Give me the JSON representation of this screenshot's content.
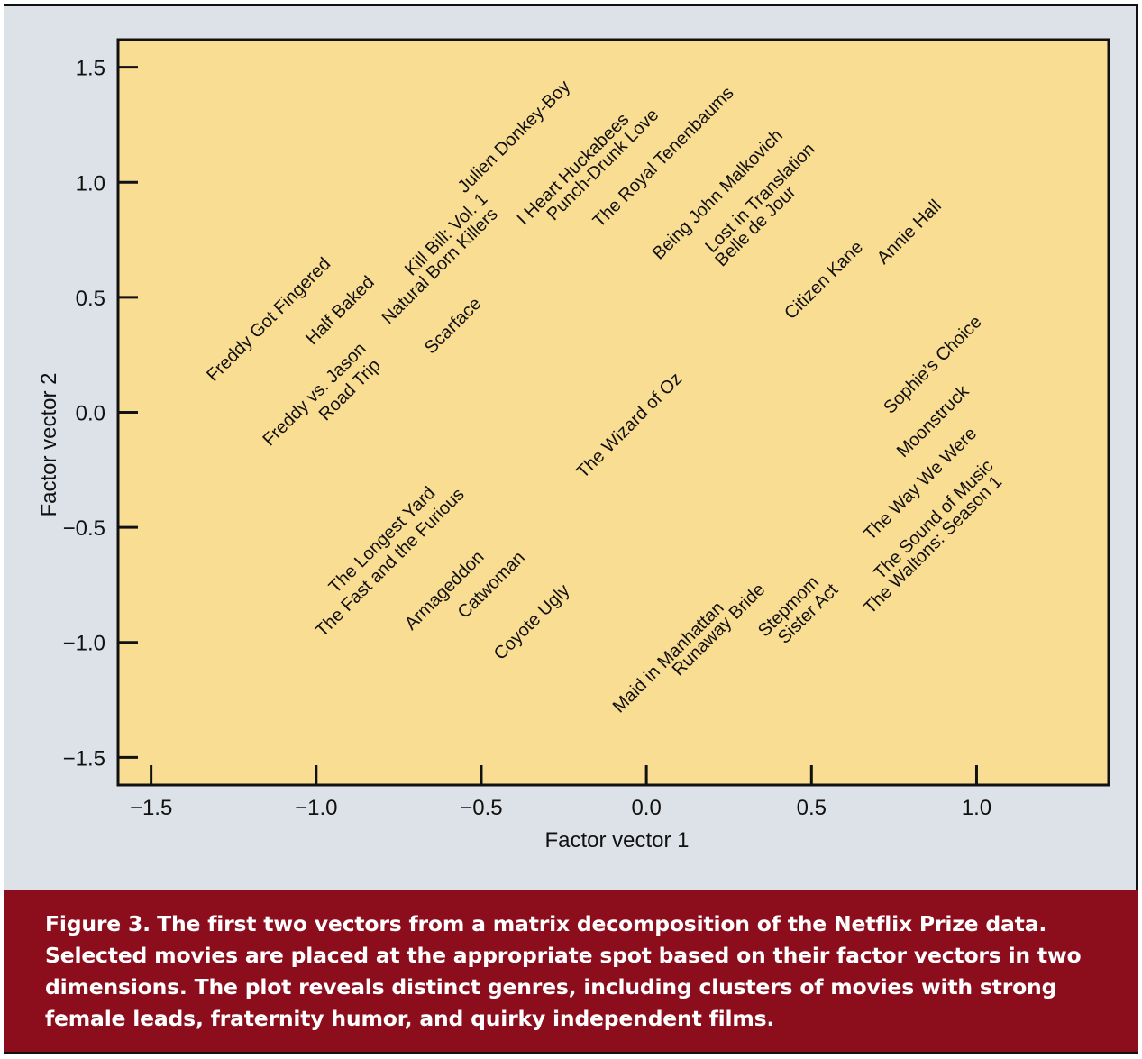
{
  "chart_data": {
    "type": "scatter",
    "xlabel": "Factor vector 1",
    "ylabel": "Factor vector 2",
    "xlim": [
      -1.6,
      1.4
    ],
    "ylim": [
      -1.62,
      1.62
    ],
    "xticks": [
      -1.5,
      -1.0,
      -0.5,
      0.0,
      0.5,
      1.0
    ],
    "xtick_labels": [
      "−1.5",
      "−1.0",
      "−0.5",
      "0.0",
      "0.5",
      "1.0"
    ],
    "yticks": [
      1.5,
      1.0,
      0.5,
      0.0,
      -0.5,
      -1.0,
      -1.5
    ],
    "ytick_labels": [
      "1.5",
      "1.0",
      "0.5",
      "0.0",
      "−0.5",
      "−1.0",
      "−1.5"
    ],
    "grid": false,
    "plot_background": "#f9dd92",
    "points": [
      {
        "label": "Freddy Got Fingered",
        "x": -1.31,
        "y": 0.13
      },
      {
        "label": "Half Baked",
        "x": -1.01,
        "y": 0.29
      },
      {
        "label": "Freddy vs. Jason",
        "x": -1.14,
        "y": -0.15
      },
      {
        "label": "Road Trip",
        "x": -0.97,
        "y": -0.04
      },
      {
        "label": "Natural Born Killers",
        "x": -0.78,
        "y": 0.38
      },
      {
        "label": "Kill Bill: Vol. 1",
        "x": -0.71,
        "y": 0.59
      },
      {
        "label": "Scarface",
        "x": -0.65,
        "y": 0.25
      },
      {
        "label": "Julien Donkey-Boy",
        "x": -0.55,
        "y": 0.95
      },
      {
        "label": "I Heart Huckabees",
        "x": -0.37,
        "y": 0.81
      },
      {
        "label": "Punch-Drunk Love",
        "x": -0.28,
        "y": 0.83
      },
      {
        "label": "The Royal Tenenbaums",
        "x": -0.14,
        "y": 0.8
      },
      {
        "label": "Being John Malkovich",
        "x": 0.04,
        "y": 0.66
      },
      {
        "label": "Lost in Translation",
        "x": 0.2,
        "y": 0.69
      },
      {
        "label": "Belle de Jour",
        "x": 0.23,
        "y": 0.63
      },
      {
        "label": "Citizen Kane",
        "x": 0.44,
        "y": 0.4
      },
      {
        "label": "Annie Hall",
        "x": 0.72,
        "y": 0.64
      },
      {
        "label": "Sophie’s Choice",
        "x": 0.74,
        "y": -0.01
      },
      {
        "label": "Moonstruck",
        "x": 0.78,
        "y": -0.2
      },
      {
        "label": "The Way We Were",
        "x": 0.68,
        "y": -0.56
      },
      {
        "label": "The Sound of Music",
        "x": 0.71,
        "y": -0.73
      },
      {
        "label": "The Waltons: Season 1",
        "x": 0.68,
        "y": -0.88
      },
      {
        "label": "The Wizard of Oz",
        "x": -0.19,
        "y": -0.29
      },
      {
        "label": "The Longest Yard",
        "x": -0.94,
        "y": -0.79
      },
      {
        "label": "The Fast and the Furious",
        "x": -0.98,
        "y": -0.98
      },
      {
        "label": "Armageddon",
        "x": -0.71,
        "y": -0.95
      },
      {
        "label": "Catwoman",
        "x": -0.55,
        "y": -0.9
      },
      {
        "label": "Coyote Ugly",
        "x": -0.44,
        "y": -1.08
      },
      {
        "label": "Maid in Manhattan",
        "x": -0.08,
        "y": -1.31
      },
      {
        "label": "Runaway Bride",
        "x": 0.1,
        "y": -1.15
      },
      {
        "label": "Stepmom",
        "x": 0.36,
        "y": -0.98
      },
      {
        "label": "Sister Act",
        "x": 0.42,
        "y": -1.01
      }
    ]
  },
  "caption": {
    "label": "Figure 3.",
    "text": "The first two vectors from a matrix decomposition of the Netflix Prize data. Selected movies are placed at the appropriate spot based on their factor vectors in two dimensions. The plot reveals distinct genres, including clusters of movies with strong female leads, fraternity humor, and quirky independent films."
  }
}
